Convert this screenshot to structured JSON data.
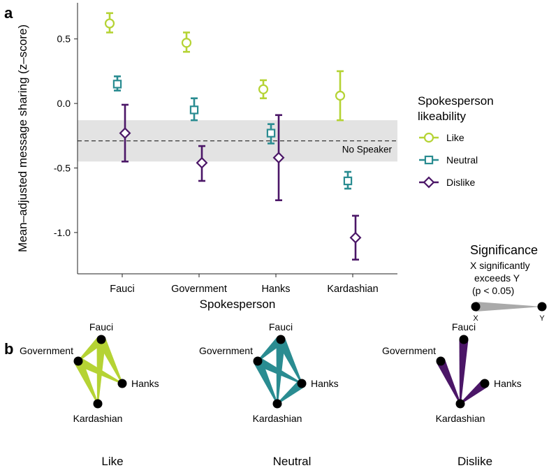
{
  "panel_labels": {
    "a": "a",
    "b": "b"
  },
  "colors": {
    "like": "#b5d334",
    "neutral": "#2a8c91",
    "dislike": "#4b1667",
    "band": "#e3e3e3"
  },
  "chart_data": [
    {
      "type": "scatter",
      "subtype": "point-with-error-bars",
      "xlabel": "Spokesperson",
      "ylabel": "Mean–adjusted message sharing (z–score)",
      "categories": [
        "Fauci",
        "Government",
        "Hanks",
        "Kardashian"
      ],
      "ylim": [
        -1.32,
        0.78
      ],
      "yticks": [
        -1.0,
        -0.5,
        0.0,
        0.5
      ],
      "ytick_labels": [
        "-1.0",
        "-0.5",
        "0.0",
        "0.5"
      ],
      "grid": false,
      "legend": {
        "title_line1": "Spokesperson",
        "title_line2": "likeability",
        "placement": "right",
        "entries": [
          "Like",
          "Neutral",
          "Dislike"
        ]
      },
      "reference": {
        "label": "No Speaker",
        "y": -0.29,
        "band_low": -0.45,
        "band_high": -0.13
      },
      "series": [
        {
          "name": "Like",
          "marker": "circle",
          "values": [
            0.62,
            0.47,
            0.11,
            0.06
          ],
          "lower": [
            0.55,
            0.4,
            0.04,
            -0.13
          ],
          "upper": [
            0.7,
            0.55,
            0.18,
            0.25
          ]
        },
        {
          "name": "Neutral",
          "marker": "square",
          "values": [
            0.15,
            -0.05,
            -0.23,
            -0.6
          ],
          "lower": [
            0.1,
            -0.13,
            -0.31,
            -0.66
          ],
          "upper": [
            0.21,
            0.04,
            -0.16,
            -0.53
          ]
        },
        {
          "name": "Dislike",
          "marker": "diamond",
          "values": [
            -0.23,
            -0.46,
            -0.42,
            -1.04
          ],
          "lower": [
            -0.45,
            -0.6,
            -0.75,
            -1.21
          ],
          "upper": [
            -0.01,
            -0.33,
            -0.09,
            -0.87
          ]
        }
      ]
    },
    {
      "type": "network",
      "subtype": "significance-graphs",
      "significance_legend": {
        "title": "Significance",
        "line1": "X significantly",
        "line2": "exceeds Y",
        "line3": "(p < 0.05)",
        "x_label": "X",
        "y_label": "Y"
      },
      "nodes": [
        "Fauci",
        "Government",
        "Hanks",
        "Kardashian"
      ],
      "graphs": [
        {
          "name": "Like",
          "edges": [
            [
              "Fauci",
              "Government"
            ],
            [
              "Fauci",
              "Hanks"
            ],
            [
              "Fauci",
              "Kardashian"
            ],
            [
              "Government",
              "Hanks"
            ],
            [
              "Government",
              "Kardashian"
            ]
          ]
        },
        {
          "name": "Neutral",
          "edges": [
            [
              "Fauci",
              "Government"
            ],
            [
              "Fauci",
              "Hanks"
            ],
            [
              "Fauci",
              "Kardashian"
            ],
            [
              "Government",
              "Hanks"
            ],
            [
              "Government",
              "Kardashian"
            ],
            [
              "Hanks",
              "Kardashian"
            ]
          ]
        },
        {
          "name": "Dislike",
          "edges": [
            [
              "Fauci",
              "Kardashian"
            ],
            [
              "Government",
              "Kardashian"
            ],
            [
              "Hanks",
              "Kardashian"
            ]
          ]
        }
      ]
    }
  ]
}
